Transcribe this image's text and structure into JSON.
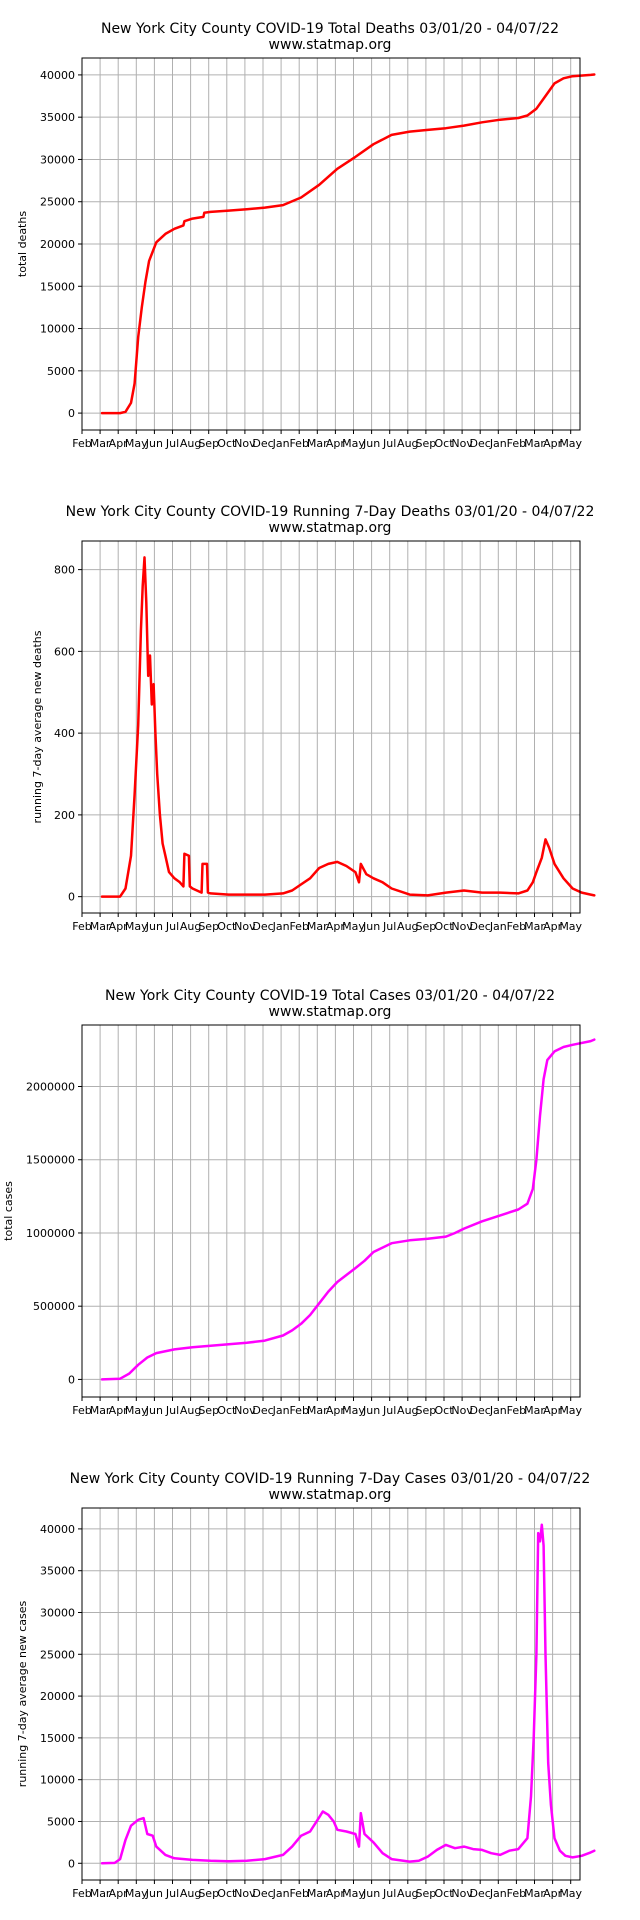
{
  "chart_data": [
    {
      "type": "line",
      "title": "New York City County COVID-19 Total Deaths 03/01/20 - 04/07/22",
      "subtitle": "www.statmap.org",
      "ylabel": "total deaths",
      "xlabel": "",
      "color": "#ff0000",
      "grid": true,
      "ylim": [
        -2000,
        42000
      ],
      "yticks": [
        0,
        5000,
        10000,
        15000,
        20000,
        25000,
        30000,
        35000,
        40000
      ],
      "ytick_labels": [
        "0",
        "5000",
        "10000",
        "15000",
        "20000",
        "25000",
        "30000",
        "35000",
        "40000"
      ],
      "series": [
        {
          "values": [
            [
              0,
              0
            ],
            [
              1,
              0
            ],
            [
              1.3,
              150
            ],
            [
              1.6,
              1200
            ],
            [
              1.8,
              3500
            ],
            [
              2,
              9000
            ],
            [
              2.2,
              12500
            ],
            [
              2.4,
              15500
            ],
            [
              2.6,
              18000
            ],
            [
              3,
              20200
            ],
            [
              3.5,
              21200
            ],
            [
              4,
              21800
            ],
            [
              4.5,
              22200
            ],
            [
              4.55,
              22700
            ],
            [
              5,
              23000
            ],
            [
              5.6,
              23200
            ],
            [
              5.65,
              23700
            ],
            [
              6,
              23800
            ],
            [
              7,
              23950
            ],
            [
              8,
              24100
            ],
            [
              9,
              24300
            ],
            [
              10,
              24600
            ],
            [
              11,
              25500
            ],
            [
              12,
              27000
            ],
            [
              13,
              28900
            ],
            [
              14,
              30300
            ],
            [
              15,
              31800
            ],
            [
              16,
              32900
            ],
            [
              17,
              33300
            ],
            [
              18,
              33500
            ],
            [
              19,
              33700
            ],
            [
              20,
              34000
            ],
            [
              21,
              34400
            ],
            [
              22,
              34700
            ],
            [
              23,
              34900
            ],
            [
              23.5,
              35200
            ],
            [
              24,
              36000
            ],
            [
              24.5,
              37500
            ],
            [
              25,
              39000
            ],
            [
              25.5,
              39600
            ],
            [
              26,
              39850
            ],
            [
              27,
              40000
            ],
            [
              27.2,
              40050
            ]
          ]
        }
      ],
      "xtick_labels": [
        "Feb",
        "Mar",
        "Apr",
        "May",
        "Jun",
        "Jul",
        "Aug",
        "Sep",
        "Oct",
        "Nov",
        "Dec",
        "Jan",
        "Feb",
        "Mar",
        "Apr",
        "May",
        "Jun",
        "Jul",
        "Aug",
        "Sep",
        "Oct",
        "Nov",
        "Dec",
        "Jan",
        "Feb",
        "Mar",
        "Apr",
        "May"
      ]
    },
    {
      "type": "line",
      "title": "New York City County COVID-19 Running 7-Day Deaths 03/01/20 - 04/07/22",
      "subtitle": "www.statmap.org",
      "ylabel": "running 7-day average new deaths",
      "xlabel": "",
      "color": "#ff0000",
      "grid": true,
      "ylim": [
        -40,
        870
      ],
      "yticks": [
        0,
        200,
        400,
        600,
        800
      ],
      "ytick_labels": [
        "0",
        "200",
        "400",
        "600",
        "800"
      ],
      "series": [
        {
          "values": [
            [
              0,
              0
            ],
            [
              1,
              0
            ],
            [
              1.3,
              20
            ],
            [
              1.6,
              100
            ],
            [
              1.8,
              250
            ],
            [
              2,
              420
            ],
            [
              2.15,
              650
            ],
            [
              2.25,
              760
            ],
            [
              2.35,
              830
            ],
            [
              2.45,
              720
            ],
            [
              2.55,
              540
            ],
            [
              2.65,
              590
            ],
            [
              2.75,
              470
            ],
            [
              2.85,
              520
            ],
            [
              2.95,
              400
            ],
            [
              3.05,
              300
            ],
            [
              3.2,
              200
            ],
            [
              3.35,
              130
            ],
            [
              3.5,
              100
            ],
            [
              3.7,
              60
            ],
            [
              4,
              45
            ],
            [
              4.3,
              35
            ],
            [
              4.5,
              25
            ],
            [
              4.55,
              105
            ],
            [
              4.8,
              100
            ],
            [
              4.85,
              25
            ],
            [
              5,
              20
            ],
            [
              5.5,
              10
            ],
            [
              5.55,
              80
            ],
            [
              5.8,
              80
            ],
            [
              5.85,
              10
            ],
            [
              6,
              8
            ],
            [
              7,
              5
            ],
            [
              8,
              5
            ],
            [
              9,
              5
            ],
            [
              10,
              8
            ],
            [
              10.5,
              15
            ],
            [
              11,
              30
            ],
            [
              11.5,
              45
            ],
            [
              12,
              70
            ],
            [
              12.5,
              80
            ],
            [
              13,
              85
            ],
            [
              13.5,
              75
            ],
            [
              14,
              60
            ],
            [
              14.2,
              35
            ],
            [
              14.3,
              80
            ],
            [
              14.6,
              55
            ],
            [
              15,
              45
            ],
            [
              15.5,
              35
            ],
            [
              16,
              20
            ],
            [
              17,
              5
            ],
            [
              18,
              3
            ],
            [
              19,
              10
            ],
            [
              20,
              15
            ],
            [
              21,
              10
            ],
            [
              22,
              10
            ],
            [
              23,
              8
            ],
            [
              23.5,
              15
            ],
            [
              23.8,
              35
            ],
            [
              24,
              60
            ],
            [
              24.3,
              95
            ],
            [
              24.5,
              140
            ],
            [
              24.7,
              120
            ],
            [
              25,
              80
            ],
            [
              25.5,
              45
            ],
            [
              26,
              20
            ],
            [
              26.5,
              10
            ],
            [
              27,
              5
            ],
            [
              27.2,
              3
            ]
          ]
        }
      ],
      "xtick_labels": [
        "Feb",
        "Mar",
        "Apr",
        "May",
        "Jun",
        "Jul",
        "Aug",
        "Sep",
        "Oct",
        "Nov",
        "Dec",
        "Jan",
        "Feb",
        "Mar",
        "Apr",
        "May",
        "Jun",
        "Jul",
        "Aug",
        "Sep",
        "Oct",
        "Nov",
        "Dec",
        "Jan",
        "Feb",
        "Mar",
        "Apr",
        "May"
      ]
    },
    {
      "type": "line",
      "title": "New York City County COVID-19 Total Cases 03/01/20 - 04/07/22",
      "subtitle": "www.statmap.org",
      "ylabel": "total cases",
      "xlabel": "",
      "color": "#ff00ff",
      "grid": true,
      "ylim": [
        -120000,
        2420000
      ],
      "yticks": [
        0,
        500000,
        1000000,
        1500000,
        2000000
      ],
      "ytick_labels": [
        "0",
        "500000",
        "1000000",
        "1500000",
        "2000000"
      ],
      "series": [
        {
          "values": [
            [
              0,
              0
            ],
            [
              1,
              5000
            ],
            [
              1.5,
              40000
            ],
            [
              2,
              100000
            ],
            [
              2.5,
              150000
            ],
            [
              3,
              180000
            ],
            [
              4,
              205000
            ],
            [
              5,
              220000
            ],
            [
              6,
              230000
            ],
            [
              7,
              240000
            ],
            [
              8,
              250000
            ],
            [
              9,
              265000
            ],
            [
              10,
              300000
            ],
            [
              10.5,
              335000
            ],
            [
              11,
              380000
            ],
            [
              11.5,
              440000
            ],
            [
              12,
              520000
            ],
            [
              12.5,
              600000
            ],
            [
              13,
              665000
            ],
            [
              14,
              760000
            ],
            [
              14.5,
              810000
            ],
            [
              15,
              870000
            ],
            [
              16,
              930000
            ],
            [
              17,
              950000
            ],
            [
              18,
              960000
            ],
            [
              19,
              975000
            ],
            [
              19.5,
              1000000
            ],
            [
              20,
              1030000
            ],
            [
              21,
              1080000
            ],
            [
              22,
              1120000
            ],
            [
              23,
              1160000
            ],
            [
              23.5,
              1200000
            ],
            [
              23.8,
              1300000
            ],
            [
              24,
              1500000
            ],
            [
              24.2,
              1800000
            ],
            [
              24.4,
              2050000
            ],
            [
              24.6,
              2180000
            ],
            [
              25,
              2240000
            ],
            [
              25.5,
              2270000
            ],
            [
              26,
              2285000
            ],
            [
              27,
              2310000
            ],
            [
              27.2,
              2320000
            ]
          ]
        }
      ],
      "xtick_labels": [
        "Feb",
        "Mar",
        "Apr",
        "May",
        "Jun",
        "Jul",
        "Aug",
        "Sep",
        "Oct",
        "Nov",
        "Dec",
        "Jan",
        "Feb",
        "Mar",
        "Apr",
        "May",
        "Jun",
        "Jul",
        "Aug",
        "Sep",
        "Oct",
        "Nov",
        "Dec",
        "Jan",
        "Feb",
        "Mar",
        "Apr",
        "May"
      ]
    },
    {
      "type": "line",
      "title": "New York City County COVID-19 Running 7-Day Cases 03/01/20 - 04/07/22",
      "subtitle": "www.statmap.org",
      "ylabel": "running 7-day average new cases",
      "xlabel": "",
      "color": "#ff00ff",
      "grid": true,
      "ylim": [
        -2000,
        42500
      ],
      "yticks": [
        0,
        5000,
        10000,
        15000,
        20000,
        25000,
        30000,
        35000,
        40000
      ],
      "ytick_labels": [
        "0",
        "5000",
        "10000",
        "15000",
        "20000",
        "25000",
        "30000",
        "35000",
        "40000"
      ],
      "series": [
        {
          "values": [
            [
              0,
              0
            ],
            [
              0.7,
              50
            ],
            [
              1,
              500
            ],
            [
              1.3,
              2800
            ],
            [
              1.6,
              4500
            ],
            [
              2,
              5200
            ],
            [
              2.3,
              5400
            ],
            [
              2.5,
              3500
            ],
            [
              2.8,
              3300
            ],
            [
              3,
              2000
            ],
            [
              3.5,
              1000
            ],
            [
              4,
              600
            ],
            [
              5,
              400
            ],
            [
              6,
              300
            ],
            [
              7,
              250
            ],
            [
              8,
              300
            ],
            [
              9,
              500
            ],
            [
              10,
              1000
            ],
            [
              10.5,
              2000
            ],
            [
              11,
              3300
            ],
            [
              11.5,
              3800
            ],
            [
              12,
              5500
            ],
            [
              12.2,
              6200
            ],
            [
              12.5,
              5800
            ],
            [
              12.8,
              5000
            ],
            [
              13,
              4000
            ],
            [
              13.5,
              3800
            ],
            [
              14,
              3500
            ],
            [
              14.2,
              2000
            ],
            [
              14.3,
              6000
            ],
            [
              14.5,
              3500
            ],
            [
              15,
              2500
            ],
            [
              15.5,
              1200
            ],
            [
              16,
              500
            ],
            [
              17,
              200
            ],
            [
              17.5,
              300
            ],
            [
              18,
              800
            ],
            [
              18.5,
              1600
            ],
            [
              19,
              2200
            ],
            [
              19.5,
              1800
            ],
            [
              20,
              2000
            ],
            [
              20.5,
              1700
            ],
            [
              21,
              1600
            ],
            [
              21.5,
              1200
            ],
            [
              22,
              1000
            ],
            [
              22.5,
              1500
            ],
            [
              23,
              1700
            ],
            [
              23.5,
              3000
            ],
            [
              23.7,
              8000
            ],
            [
              23.85,
              15000
            ],
            [
              24,
              25000
            ],
            [
              24.1,
              39500
            ],
            [
              24.2,
              38500
            ],
            [
              24.3,
              40500
            ],
            [
              24.4,
              38000
            ],
            [
              24.5,
              25000
            ],
            [
              24.65,
              12000
            ],
            [
              24.8,
              7000
            ],
            [
              25,
              3000
            ],
            [
              25.3,
              1500
            ],
            [
              25.6,
              900
            ],
            [
              26,
              700
            ],
            [
              26.5,
              900
            ],
            [
              27,
              1300
            ],
            [
              27.2,
              1500
            ]
          ]
        }
      ],
      "xtick_labels": [
        "Feb",
        "Mar",
        "Apr",
        "May",
        "Jun",
        "Jul",
        "Aug",
        "Sep",
        "Oct",
        "Nov",
        "Dec",
        "Jan",
        "Feb",
        "Mar",
        "Apr",
        "May",
        "Jun",
        "Jul",
        "Aug",
        "Sep",
        "Oct",
        "Nov",
        "Dec",
        "Jan",
        "Feb",
        "Mar",
        "Apr",
        "May"
      ]
    }
  ]
}
